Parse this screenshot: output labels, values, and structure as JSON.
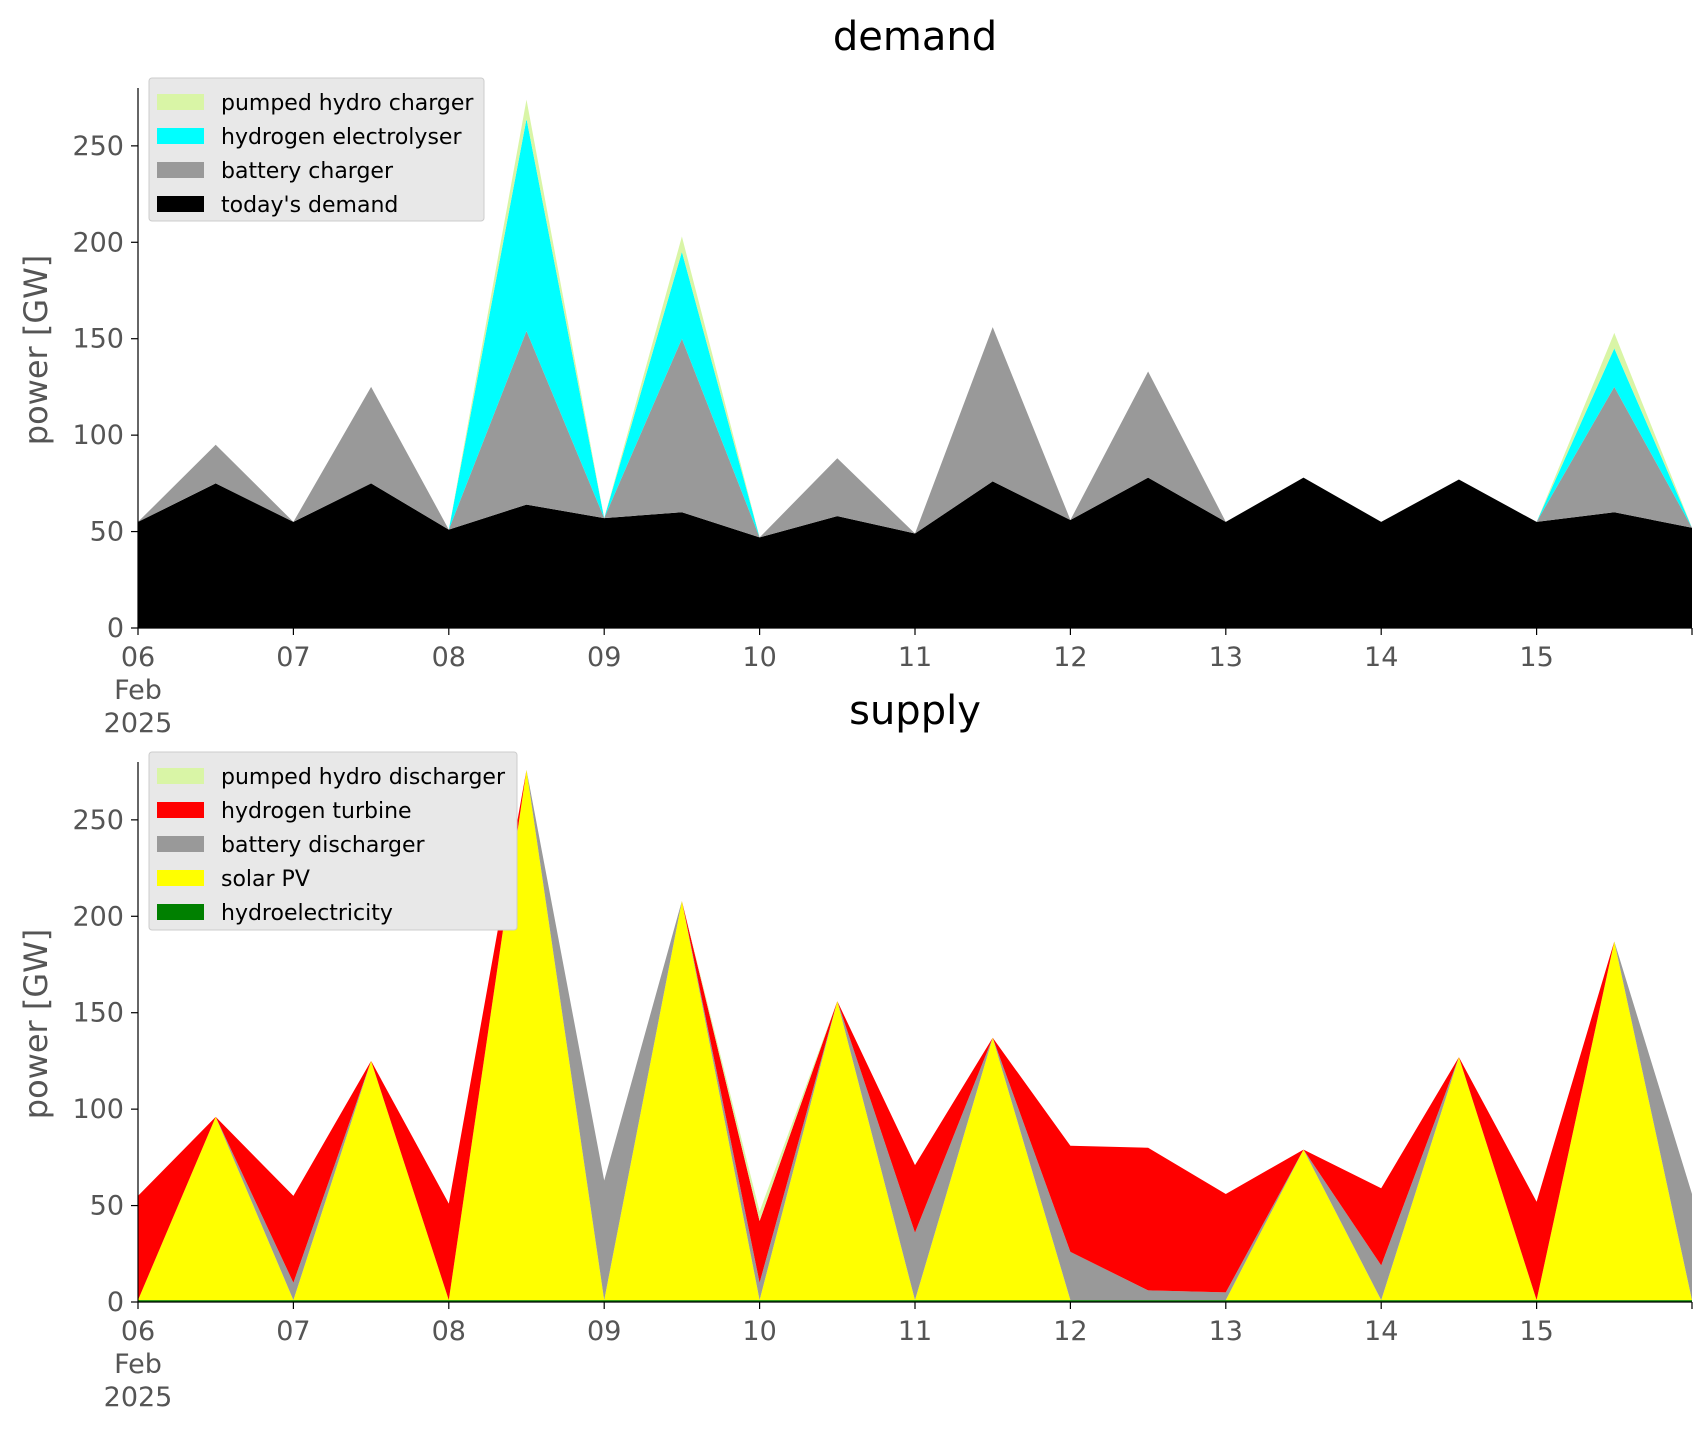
{
  "chart_data": [
    {
      "type": "area",
      "title": "demand",
      "ylabel": "power [GW]",
      "ylim": [
        0,
        280
      ],
      "yticks": [
        0,
        50,
        100,
        150,
        200,
        250
      ],
      "grid": false,
      "legend_position": "upper-left",
      "x_tick_labels": [
        "06\nFeb\n2025",
        "07",
        "08",
        "09",
        "10",
        "11",
        "12",
        "13",
        "14",
        "15"
      ],
      "x_unit": "days from 06 Feb 2025",
      "x": [
        0,
        0.5,
        1,
        1.5,
        2,
        2.5,
        3,
        3.5,
        4,
        4.5,
        5,
        5.5,
        6,
        6.5,
        7,
        7.5,
        8,
        8.5,
        9,
        9.5,
        10
      ],
      "series": [
        {
          "name": "today's demand",
          "color": "#000000",
          "values": [
            55,
            75,
            55,
            75,
            51,
            64,
            57,
            60,
            47,
            58,
            49,
            76,
            56,
            78,
            55,
            78,
            55,
            77,
            55,
            60,
            52
          ]
        },
        {
          "name": "battery charger",
          "color": "#999999",
          "values": [
            0,
            20,
            0,
            50,
            0,
            90,
            0,
            90,
            0,
            30,
            0,
            80,
            0,
            55,
            0,
            0,
            0,
            0,
            0,
            65,
            0
          ]
        },
        {
          "name": "hydrogen electrolyser",
          "color": "#00ffff",
          "values": [
            0,
            0,
            0,
            0,
            0,
            110,
            0,
            45,
            0,
            0,
            0,
            0,
            0,
            0,
            0,
            0,
            0,
            0,
            0,
            20,
            0
          ]
        },
        {
          "name": "pumped hydro charger",
          "color": "#d9f5a6",
          "values": [
            0,
            0,
            0,
            0,
            0,
            10,
            0,
            8,
            0,
            0,
            0,
            0,
            0,
            0,
            0,
            0,
            0,
            0,
            0,
            8,
            0
          ]
        }
      ]
    },
    {
      "type": "area",
      "title": "supply",
      "ylabel": "power [GW]",
      "ylim": [
        0,
        280
      ],
      "yticks": [
        0,
        50,
        100,
        150,
        200,
        250
      ],
      "grid": false,
      "legend_position": "upper-left",
      "x_tick_labels": [
        "06\nFeb\n2025",
        "07",
        "08",
        "09",
        "10",
        "11",
        "12",
        "13",
        "14",
        "15"
      ],
      "x_unit": "days from 06 Feb 2025",
      "x": [
        0,
        0.5,
        1,
        1.5,
        2,
        2.5,
        3,
        3.5,
        4,
        4.5,
        5,
        5.5,
        6,
        6.5,
        7,
        7.5,
        8,
        8.5,
        9,
        9.5,
        10
      ],
      "series": [
        {
          "name": "hydroelectricity",
          "color": "#008000",
          "values": [
            1,
            1,
            1,
            1,
            1,
            1,
            1,
            1,
            1,
            1,
            1,
            1,
            1,
            1,
            1,
            1,
            1,
            1,
            1,
            1,
            1
          ]
        },
        {
          "name": "solar PV",
          "color": "#ffff00",
          "values": [
            0,
            95,
            0,
            124,
            0,
            275,
            0,
            207,
            0,
            155,
            0,
            136,
            0,
            0,
            0,
            78,
            0,
            126,
            0,
            186,
            0
          ]
        },
        {
          "name": "battery discharger",
          "color": "#999999",
          "values": [
            0,
            0,
            9,
            0,
            0,
            0,
            62,
            0,
            9,
            0,
            35,
            0,
            25,
            5,
            4,
            0,
            18,
            0,
            0,
            0,
            55
          ]
        },
        {
          "name": "hydrogen turbine",
          "color": "#ff0000",
          "values": [
            54,
            0,
            45,
            0,
            50,
            0,
            0,
            0,
            32,
            0,
            35,
            0,
            55,
            74,
            51,
            0,
            40,
            0,
            51,
            0,
            0
          ]
        },
        {
          "name": "pumped hydro discharger",
          "color": "#d9f5a6",
          "values": [
            0,
            0,
            0,
            0,
            0,
            0,
            0,
            0,
            5,
            0,
            0,
            0,
            0,
            0,
            0,
            0,
            0,
            0,
            0,
            0,
            0
          ]
        }
      ]
    }
  ]
}
